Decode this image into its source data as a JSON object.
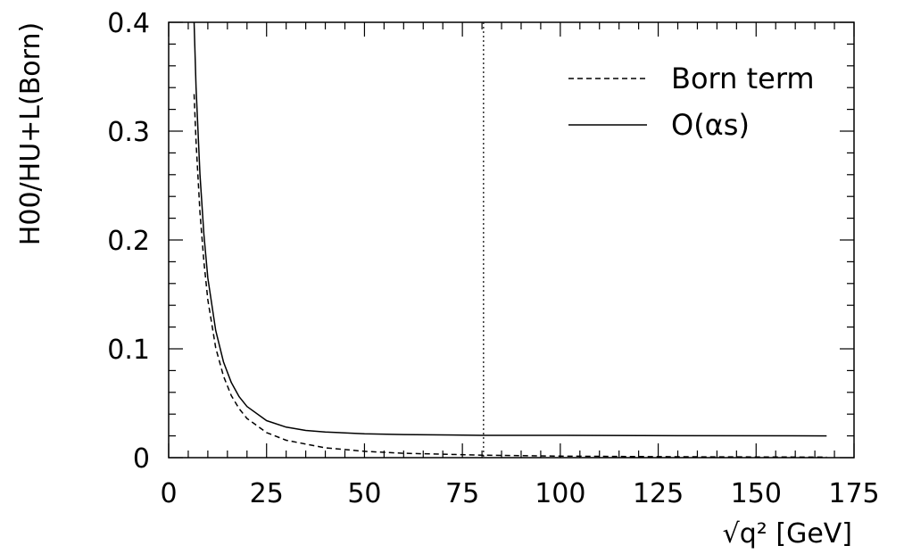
{
  "chart_data": {
    "type": "line",
    "xlabel": "√q² [GeV]",
    "ylabel": "H00/HU+L(Born)",
    "xlim": [
      0,
      175
    ],
    "ylim": [
      0,
      0.4
    ],
    "xticks": [
      0,
      25,
      50,
      75,
      100,
      125,
      150,
      175
    ],
    "yticks": [
      0,
      0.1,
      0.2,
      0.3,
      0.4
    ],
    "xtick_labels": [
      "0",
      "25",
      "50",
      "75",
      "100",
      "125",
      "150",
      "175"
    ],
    "ytick_labels": [
      "0",
      "0.1",
      "0.2",
      "0.3",
      "0.4"
    ],
    "vertical_marker": {
      "x": 80.4,
      "style": "dotted"
    },
    "legend": {
      "placement": "top-right",
      "entries": [
        {
          "label": "Born term",
          "series": 0
        },
        {
          "label": "O(αs)",
          "series": 1
        }
      ]
    },
    "series": [
      {
        "name": "Born term",
        "style": "dashed",
        "x": [
          6.5,
          7,
          8,
          9,
          10,
          12,
          14,
          16,
          18,
          20,
          25,
          30,
          40,
          50,
          60,
          80,
          100,
          130,
          168
        ],
        "y": [
          0.334,
          0.29,
          0.225,
          0.18,
          0.145,
          0.101,
          0.075,
          0.057,
          0.045,
          0.036,
          0.023,
          0.016,
          0.009,
          0.0058,
          0.004,
          0.0023,
          0.0014,
          0.0008,
          0.0005
        ]
      },
      {
        "name": "O(αs)",
        "style": "solid",
        "x": [
          6.5,
          7,
          8,
          9,
          10,
          12,
          14,
          16,
          18,
          20,
          25,
          30,
          35,
          40,
          50,
          60,
          80,
          100,
          130,
          168
        ],
        "y": [
          0.4,
          0.34,
          0.26,
          0.205,
          0.165,
          0.117,
          0.088,
          0.069,
          0.056,
          0.047,
          0.034,
          0.028,
          0.025,
          0.0235,
          0.022,
          0.0212,
          0.0205,
          0.0205,
          0.0202,
          0.02
        ]
      }
    ]
  }
}
